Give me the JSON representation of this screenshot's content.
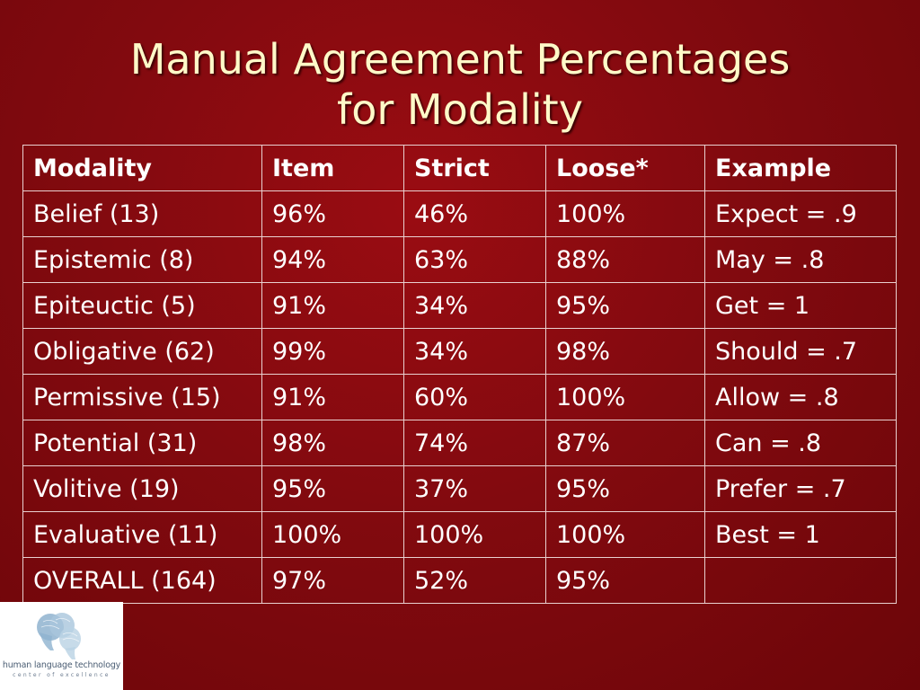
{
  "slide": {
    "title_line1": "Manual Agreement Percentages",
    "title_line2": "for Modality"
  },
  "table": {
    "headers": [
      "Modality",
      "Item",
      "Strict",
      "Loose*",
      "Example"
    ],
    "rows": [
      [
        "Belief (13)",
        "96%",
        "46%",
        "100%",
        "Expect = .9"
      ],
      [
        "Epistemic (8)",
        "94%",
        "63%",
        "88%",
        "May = .8"
      ],
      [
        "Epiteuctic (5)",
        "91%",
        "34%",
        "95%",
        "Get = 1"
      ],
      [
        "Obligative (62)",
        "99%",
        "34%",
        "98%",
        "Should = .7"
      ],
      [
        "Permissive (15)",
        "91%",
        "60%",
        "100%",
        "Allow = .8"
      ],
      [
        "Potential (31)",
        "98%",
        "74%",
        "87%",
        "Can = .8"
      ],
      [
        "Volitive (19)",
        "95%",
        "37%",
        "95%",
        "Prefer = .7"
      ],
      [
        "Evaluative (11)",
        "100%",
        "100%",
        "100%",
        "Best = 1"
      ],
      [
        "OVERALL (164)",
        "97%",
        "52%",
        "95%",
        ""
      ]
    ]
  },
  "logo": {
    "name": "human language technology",
    "tagline": "center of excellence",
    "icon": "overlapping-heads-icon"
  },
  "colors": {
    "background": "#820a0f",
    "title": "#fff9c8",
    "table_text": "#ffffff",
    "table_border": "#e9d0d0"
  }
}
